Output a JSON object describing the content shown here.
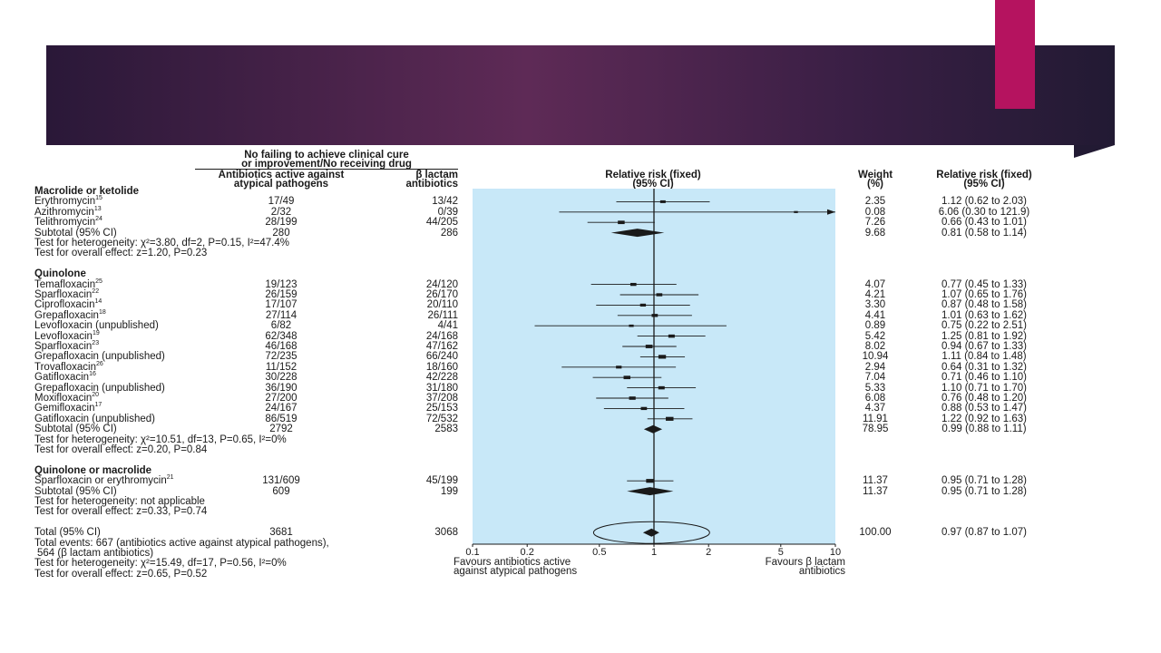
{
  "header": {
    "group_title_line1": "No failing to achieve clinical cure",
    "group_title_line2": "or improvement/No receiving drug",
    "col_atypical_line1": "Antibiotics active against",
    "col_atypical_line2": "atypical pathogens",
    "col_blactam_line1": "β lactam",
    "col_blactam_line2": "antibiotics",
    "col_rr_line1": "Relative risk (fixed)",
    "col_rr_line2": "(95% CI)",
    "col_weight_line1": "Weight",
    "col_weight_line2": "(%)",
    "col_rrval_line1": "Relative risk (fixed)",
    "col_rrval_line2": "(95% CI)"
  },
  "sections": [
    {
      "title": "Macrolide or ketolide",
      "rows": [
        {
          "study": "Erythromycin",
          "ref": "15",
          "atypical": "17/49",
          "blactam": "13/42",
          "weight": "2.35",
          "ci_text": "1.12 (0.62 to 2.03)"
        },
        {
          "study": "Azithromycin",
          "ref": "13",
          "atypical": "2/32",
          "blactam": "0/39",
          "weight": "0.08",
          "ci_text": "6.06 (0.30 to 121.9)"
        },
        {
          "study": "Telithromycin",
          "ref": "24",
          "atypical": "28/199",
          "blactam": "44/205",
          "weight": "7.26",
          "ci_text": "0.66 (0.43 to 1.01)"
        }
      ],
      "subtotal": {
        "label": "Subtotal (95% CI)",
        "atypical": "280",
        "blactam": "286",
        "weight": "9.68",
        "ci_text": "0.81 (0.58 to 1.14)"
      },
      "heterogeneity": "Test for heterogeneity: χ²=3.80, df=2, P=0.15, I²=47.4%",
      "overall": "Test for overall effect: z=1.20, P=0.23"
    },
    {
      "title": "Quinolone",
      "rows": [
        {
          "study": "Temafloxacin",
          "ref": "25",
          "atypical": "19/123",
          "blactam": "24/120",
          "weight": "4.07",
          "ci_text": "0.77 (0.45 to 1.33)"
        },
        {
          "study": "Sparfloxacin",
          "ref": "22",
          "atypical": "26/159",
          "blactam": "26/170",
          "weight": "4.21",
          "ci_text": "1.07 (0.65 to 1.76)"
        },
        {
          "study": "Ciprofloxacin",
          "ref": "14",
          "atypical": "17/107",
          "blactam": "20/110",
          "weight": "3.30",
          "ci_text": "0.87 (0.48 to 1.58)"
        },
        {
          "study": "Grepafloxacin",
          "ref": "18",
          "atypical": "27/114",
          "blactam": "26/111",
          "weight": "4.41",
          "ci_text": "1.01 (0.63 to 1.62)"
        },
        {
          "study": "Levofloxacin (unpublished)",
          "ref": "",
          "atypical": "6/82",
          "blactam": "4/41",
          "weight": "0.89",
          "ci_text": "0.75 (0.22 to 2.51)"
        },
        {
          "study": "Levofloxacin",
          "ref": "19",
          "atypical": "62/348",
          "blactam": "24/168",
          "weight": "5.42",
          "ci_text": "1.25 (0.81 to 1.92)"
        },
        {
          "study": "Sparfloxacin",
          "ref": "23",
          "atypical": "46/168",
          "blactam": "47/162",
          "weight": "8.02",
          "ci_text": "0.94 (0.67 to 1.33)"
        },
        {
          "study": "Grepafloxacin (unpublished)",
          "ref": "",
          "atypical": "72/235",
          "blactam": "66/240",
          "weight": "10.94",
          "ci_text": "1.11 (0.84 to 1.48)"
        },
        {
          "study": "Trovafloxacin",
          "ref": "26",
          "atypical": "11/152",
          "blactam": "18/160",
          "weight": "2.94",
          "ci_text": "0.64 (0.31 to 1.32)"
        },
        {
          "study": "Gatifloxacin",
          "ref": "16",
          "atypical": "30/228",
          "blactam": "42/228",
          "weight": "7.04",
          "ci_text": "0.71 (0.46 to 1.10)"
        },
        {
          "study": "Grepafloxacin (unpublished)",
          "ref": "",
          "atypical": "36/190",
          "blactam": "31/180",
          "weight": "5.33",
          "ci_text": "1.10 (0.71 to 1.70)"
        },
        {
          "study": "Moxifloxacin",
          "ref": "20",
          "atypical": "27/200",
          "blactam": "37/208",
          "weight": "6.08",
          "ci_text": "0.76 (0.48 to 1.20)"
        },
        {
          "study": "Gemifloxacin",
          "ref": "17",
          "atypical": "24/167",
          "blactam": "25/153",
          "weight": "4.37",
          "ci_text": "0.88 (0.53 to 1.47)"
        },
        {
          "study": "Gatifloxacin (unpublished)",
          "ref": "",
          "atypical": "86/519",
          "blactam": "72/532",
          "weight": "11.91",
          "ci_text": "1.22 (0.92 to 1.63)"
        }
      ],
      "subtotal": {
        "label": "Subtotal (95% CI)",
        "atypical": "2792",
        "blactam": "2583",
        "weight": "78.95",
        "ci_text": "0.99 (0.88 to 1.11)"
      },
      "heterogeneity": "Test for heterogeneity: χ²=10.51, df=13, P=0.65, I²=0%",
      "overall": "Test for overall effect: z=0.20, P=0.84"
    },
    {
      "title": "Quinolone or macrolide",
      "rows": [
        {
          "study": "Sparfloxacin or erythromycin",
          "ref": "21",
          "atypical": "131/609",
          "blactam": "45/199",
          "weight": "11.37",
          "ci_text": "0.95 (0.71 to 1.28)"
        }
      ],
      "subtotal": {
        "label": "Subtotal (95% CI)",
        "atypical": "609",
        "blactam": "199",
        "weight": "11.37",
        "ci_text": "0.95 (0.71 to 1.28)"
      },
      "heterogeneity": "Test for heterogeneity: not applicable",
      "overall": "Test for overall effect: z=0.33, P=0.74"
    }
  ],
  "total": {
    "label": "Total (95% CI)",
    "atypical": "3681",
    "blactam": "3068",
    "weight": "100.00",
    "ci_text": "0.97 (0.87 to 1.07)",
    "events_line1": "Total events: 667 (antibiotics active against atypical pathogens),",
    "events_line2": "564 (β lactam antibiotics)",
    "heterogeneity": "Test for heterogeneity: χ²=15.49, df=17, P=0.56, I²=0%",
    "overall": "Test for overall effect: z=0.65, P=0.52"
  },
  "footer": {
    "favours_left_line1": "Favours antibiotics active",
    "favours_left_line2": "against atypical pathogens",
    "favours_right_line1": "Favours β lactam",
    "favours_right_line2": "antibiotics"
  },
  "colors": {
    "plot_bg": "#c8e8f8",
    "banner": "#4a2448",
    "accent": "#b5135f",
    "marker": "#1a1a1a"
  },
  "chart_data": {
    "type": "forest",
    "x_scale": "log",
    "xlim": [
      0.1,
      10
    ],
    "x_ticks": [
      0.1,
      0.2,
      0.5,
      1,
      2,
      5,
      10
    ],
    "x_tick_labels": [
      "0.1",
      "0.2",
      "0.5",
      "1",
      "2",
      "5",
      "10"
    ],
    "reference_line": 1,
    "title": "Relative risk (fixed) (95% CI)",
    "studies": [
      {
        "label": "Erythromycin",
        "rr": 1.12,
        "lo": 0.62,
        "hi": 2.03,
        "weight": 2.35
      },
      {
        "label": "Azithromycin",
        "rr": 6.06,
        "lo": 0.3,
        "hi": 121.9,
        "weight": 0.08
      },
      {
        "label": "Telithromycin",
        "rr": 0.66,
        "lo": 0.43,
        "hi": 1.01,
        "weight": 7.26
      },
      {
        "label": "Subtotal (95% CI)",
        "rr": 0.81,
        "lo": 0.58,
        "hi": 1.14,
        "weight": 9.68,
        "summary": true
      },
      {
        "label": "Temafloxacin",
        "rr": 0.77,
        "lo": 0.45,
        "hi": 1.33,
        "weight": 4.07
      },
      {
        "label": "Sparfloxacin",
        "rr": 1.07,
        "lo": 0.65,
        "hi": 1.76,
        "weight": 4.21
      },
      {
        "label": "Ciprofloxacin",
        "rr": 0.87,
        "lo": 0.48,
        "hi": 1.58,
        "weight": 3.3
      },
      {
        "label": "Grepafloxacin",
        "rr": 1.01,
        "lo": 0.63,
        "hi": 1.62,
        "weight": 4.41
      },
      {
        "label": "Levofloxacin (unpublished)",
        "rr": 0.75,
        "lo": 0.22,
        "hi": 2.51,
        "weight": 0.89
      },
      {
        "label": "Levofloxacin",
        "rr": 1.25,
        "lo": 0.81,
        "hi": 1.92,
        "weight": 5.42
      },
      {
        "label": "Sparfloxacin",
        "rr": 0.94,
        "lo": 0.67,
        "hi": 1.33,
        "weight": 8.02
      },
      {
        "label": "Grepafloxacin (unpublished)",
        "rr": 1.11,
        "lo": 0.84,
        "hi": 1.48,
        "weight": 10.94
      },
      {
        "label": "Trovafloxacin",
        "rr": 0.64,
        "lo": 0.31,
        "hi": 1.32,
        "weight": 2.94
      },
      {
        "label": "Gatifloxacin",
        "rr": 0.71,
        "lo": 0.46,
        "hi": 1.1,
        "weight": 7.04
      },
      {
        "label": "Grepafloxacin (unpublished)",
        "rr": 1.1,
        "lo": 0.71,
        "hi": 1.7,
        "weight": 5.33
      },
      {
        "label": "Moxifloxacin",
        "rr": 0.76,
        "lo": 0.48,
        "hi": 1.2,
        "weight": 6.08
      },
      {
        "label": "Gemifloxacin",
        "rr": 0.88,
        "lo": 0.53,
        "hi": 1.47,
        "weight": 4.37
      },
      {
        "label": "Gatifloxacin (unpublished)",
        "rr": 1.22,
        "lo": 0.92,
        "hi": 1.63,
        "weight": 11.91
      },
      {
        "label": "Subtotal (95% CI)",
        "rr": 0.99,
        "lo": 0.88,
        "hi": 1.11,
        "weight": 78.95,
        "summary": true
      },
      {
        "label": "Sparfloxacin or erythromycin",
        "rr": 0.95,
        "lo": 0.71,
        "hi": 1.28,
        "weight": 11.37
      },
      {
        "label": "Subtotal (95% CI)",
        "rr": 0.95,
        "lo": 0.71,
        "hi": 1.28,
        "weight": 11.37,
        "summary": true
      },
      {
        "label": "Total (95% CI)",
        "rr": 0.97,
        "lo": 0.87,
        "hi": 1.07,
        "weight": 100.0,
        "summary": true
      }
    ]
  }
}
